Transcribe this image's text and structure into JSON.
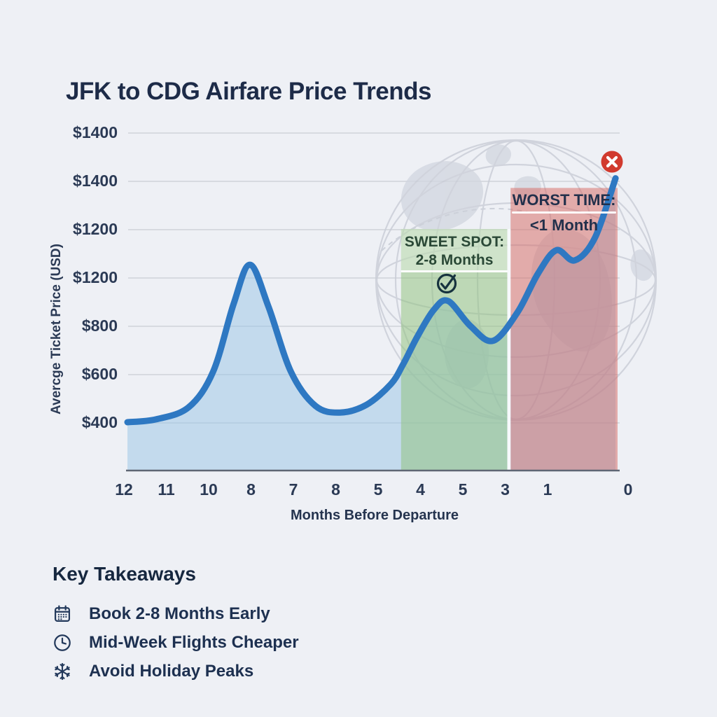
{
  "header": {
    "title": "JFK to CDG Airfare Price Trends"
  },
  "chart_data": {
    "type": "line",
    "title": "JFK to CDG Airfare Price Trends",
    "xlabel": "Months Before Departure",
    "ylabel": "Avercge Ticket Price (USD)",
    "x_tick_labels": [
      "12",
      "11",
      "10",
      "8",
      "7",
      "8",
      "5",
      "4",
      "5",
      "3",
      "1",
      "0"
    ],
    "y_tick_labels_top_to_bottom": [
      "$1400",
      "$1400",
      "$1200",
      "$1200",
      "$800",
      "$600",
      "$400"
    ],
    "grid": true,
    "grid_color": "#d7dae0",
    "axis_line_color": "#5e6674",
    "line_color": "#2e78c2",
    "area_fill": "rgba(151,195,230,0.50)",
    "background": "#eef0f5",
    "points": [
      {
        "months_before": 12.0,
        "price": 400
      },
      {
        "months_before": 11.3,
        "price": 412
      },
      {
        "months_before": 10.5,
        "price": 462
      },
      {
        "months_before": 9.9,
        "price": 610
      },
      {
        "months_before": 9.4,
        "price": 890
      },
      {
        "months_before": 9.0,
        "price": 1052
      },
      {
        "months_before": 8.55,
        "price": 880
      },
      {
        "months_before": 8.0,
        "price": 610
      },
      {
        "months_before": 7.4,
        "price": 468
      },
      {
        "months_before": 6.8,
        "price": 440
      },
      {
        "months_before": 6.15,
        "price": 472
      },
      {
        "months_before": 5.55,
        "price": 558
      },
      {
        "months_before": 5.25,
        "price": 640
      },
      {
        "months_before": 4.9,
        "price": 755
      },
      {
        "months_before": 4.5,
        "price": 865
      },
      {
        "months_before": 4.15,
        "price": 902
      },
      {
        "months_before": 3.6,
        "price": 798
      },
      {
        "months_before": 3.05,
        "price": 737
      },
      {
        "months_before": 2.45,
        "price": 855
      },
      {
        "months_before": 1.95,
        "price": 1015
      },
      {
        "months_before": 1.5,
        "price": 1112
      },
      {
        "months_before": 1.05,
        "price": 1070
      },
      {
        "months_before": 0.55,
        "price": 1165
      },
      {
        "months_before": 0.05,
        "price": 1410
      }
    ],
    "zones": [
      {
        "id": "sweet-spot",
        "label": [
          "SWEET SPOT:",
          "2-8 Months"
        ],
        "from_months": 5.3,
        "to_months": 2.7,
        "top_price": 1200,
        "fill": "rgba(144,193,125,0.52)",
        "text_color": "#2a4836",
        "marker_icon": "check-circle-icon",
        "marker_color": "#17333f"
      },
      {
        "id": "worst-time",
        "label": [
          "WORST TIME:",
          "<1 Month"
        ],
        "from_months": 2.62,
        "to_months": 0,
        "top_price": 1370,
        "fill": "rgba(214,102,95,0.50)",
        "text_color": "#22304b",
        "marker_icon": "x-circle-icon",
        "marker_color": "#d13a2e"
      }
    ],
    "y_scale_note": "gridlines evenly spaced; price read linearly at 200 USD per gridline from 400 at lowest gridline"
  },
  "takeaways": {
    "heading": "Key Takeaways",
    "items": [
      {
        "icon": "calendar-icon",
        "label": "Book 2-8 Months Early"
      },
      {
        "icon": "clock-icon",
        "label": "Mid-Week Flights Cheaper"
      },
      {
        "icon": "snowflake-icon",
        "label": "Avoid Holiday Peaks"
      }
    ]
  }
}
